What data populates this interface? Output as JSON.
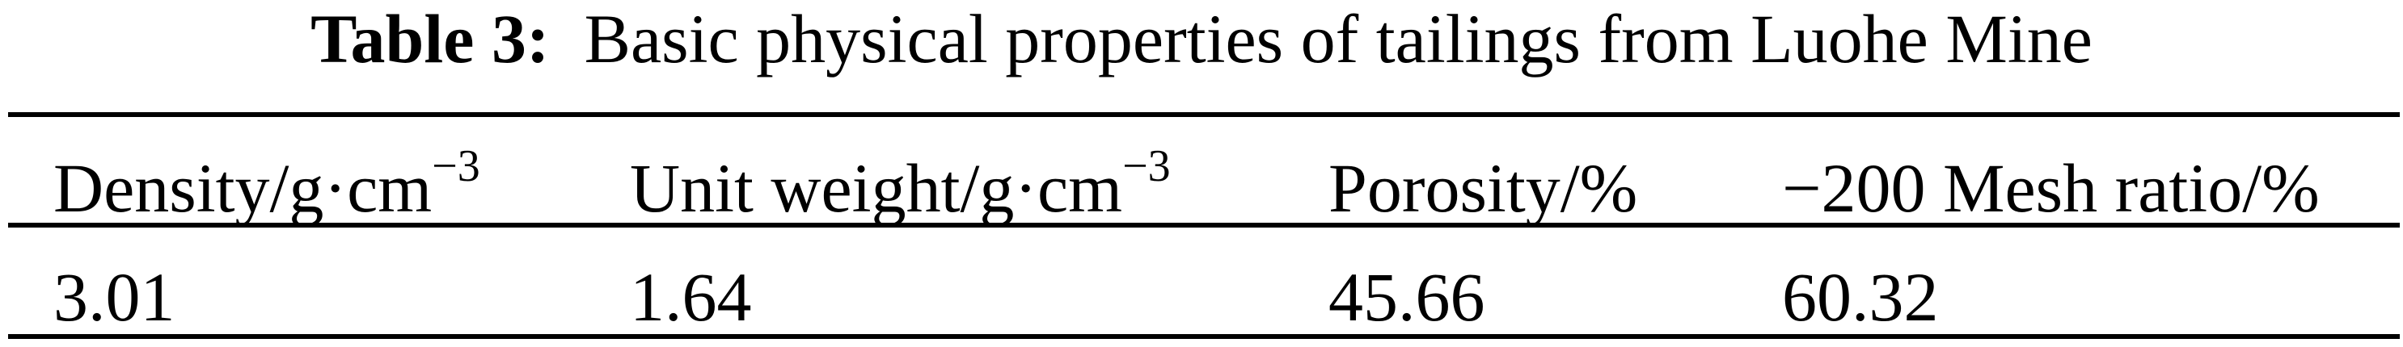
{
  "table": {
    "label": "Table 3:",
    "caption": "Basic physical properties of tailings from Luohe Mine",
    "headers": [
      {
        "text": "Density/g·cm",
        "sup": "−3"
      },
      {
        "text": "Unit weight/g·cm",
        "sup": "−3"
      },
      {
        "text": "Porosity/%",
        "sup": ""
      },
      {
        "text": "−200 Mesh ratio/%",
        "sup": ""
      }
    ],
    "rows": [
      [
        "3.01",
        "1.64",
        "45.66",
        "60.32"
      ]
    ]
  }
}
